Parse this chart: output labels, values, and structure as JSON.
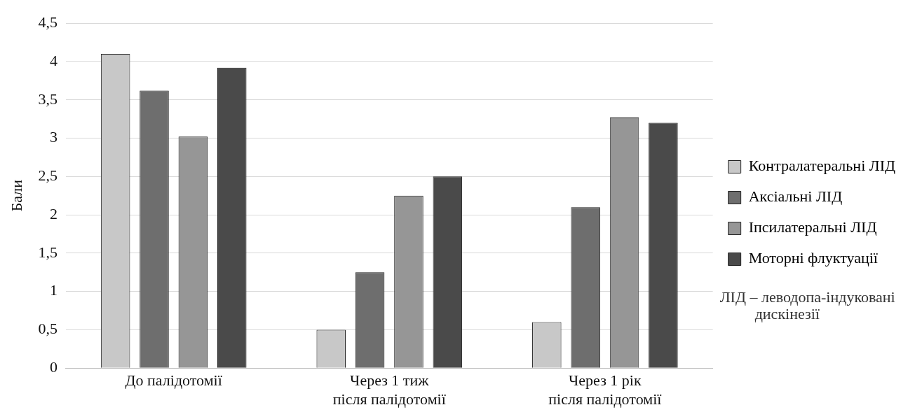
{
  "chart_data": {
    "type": "bar",
    "ylabel": "Бали",
    "categories": [
      "До палідотомії",
      "Через 1 тиж\nпісля палідотомії",
      "Через 1 рік\nпісля палідотомії"
    ],
    "series": [
      {
        "name": "Контралатеральні ЛІД",
        "color": "#c8c8c8",
        "values": [
          4.1,
          0.5,
          0.6
        ]
      },
      {
        "name": "Аксіальні ЛІД",
        "color": "#6e6e6e",
        "values": [
          3.62,
          1.25,
          2.1
        ]
      },
      {
        "name": "Іпсилатеральні ЛІД",
        "color": "#969696",
        "values": [
          3.02,
          2.25,
          3.27
        ]
      },
      {
        "name": "Моторні флуктуації",
        "color": "#4a4a4a",
        "values": [
          3.92,
          2.5,
          3.2
        ]
      }
    ],
    "ylim": [
      0,
      4.5
    ],
    "yticks": [
      0,
      {
        "value": 0.5,
        "label": "0,5"
      },
      1,
      {
        "value": 1.5,
        "label": "1,5"
      },
      2,
      {
        "value": 2.5,
        "label": "2,5"
      },
      3,
      {
        "value": 3.5,
        "label": "3,5"
      },
      4,
      {
        "value": 4.5,
        "label": "4,5"
      }
    ],
    "grid": "y",
    "legend": "right",
    "annotations": [
      "ЛІД – леводопа-індуковані дискінезії"
    ]
  }
}
